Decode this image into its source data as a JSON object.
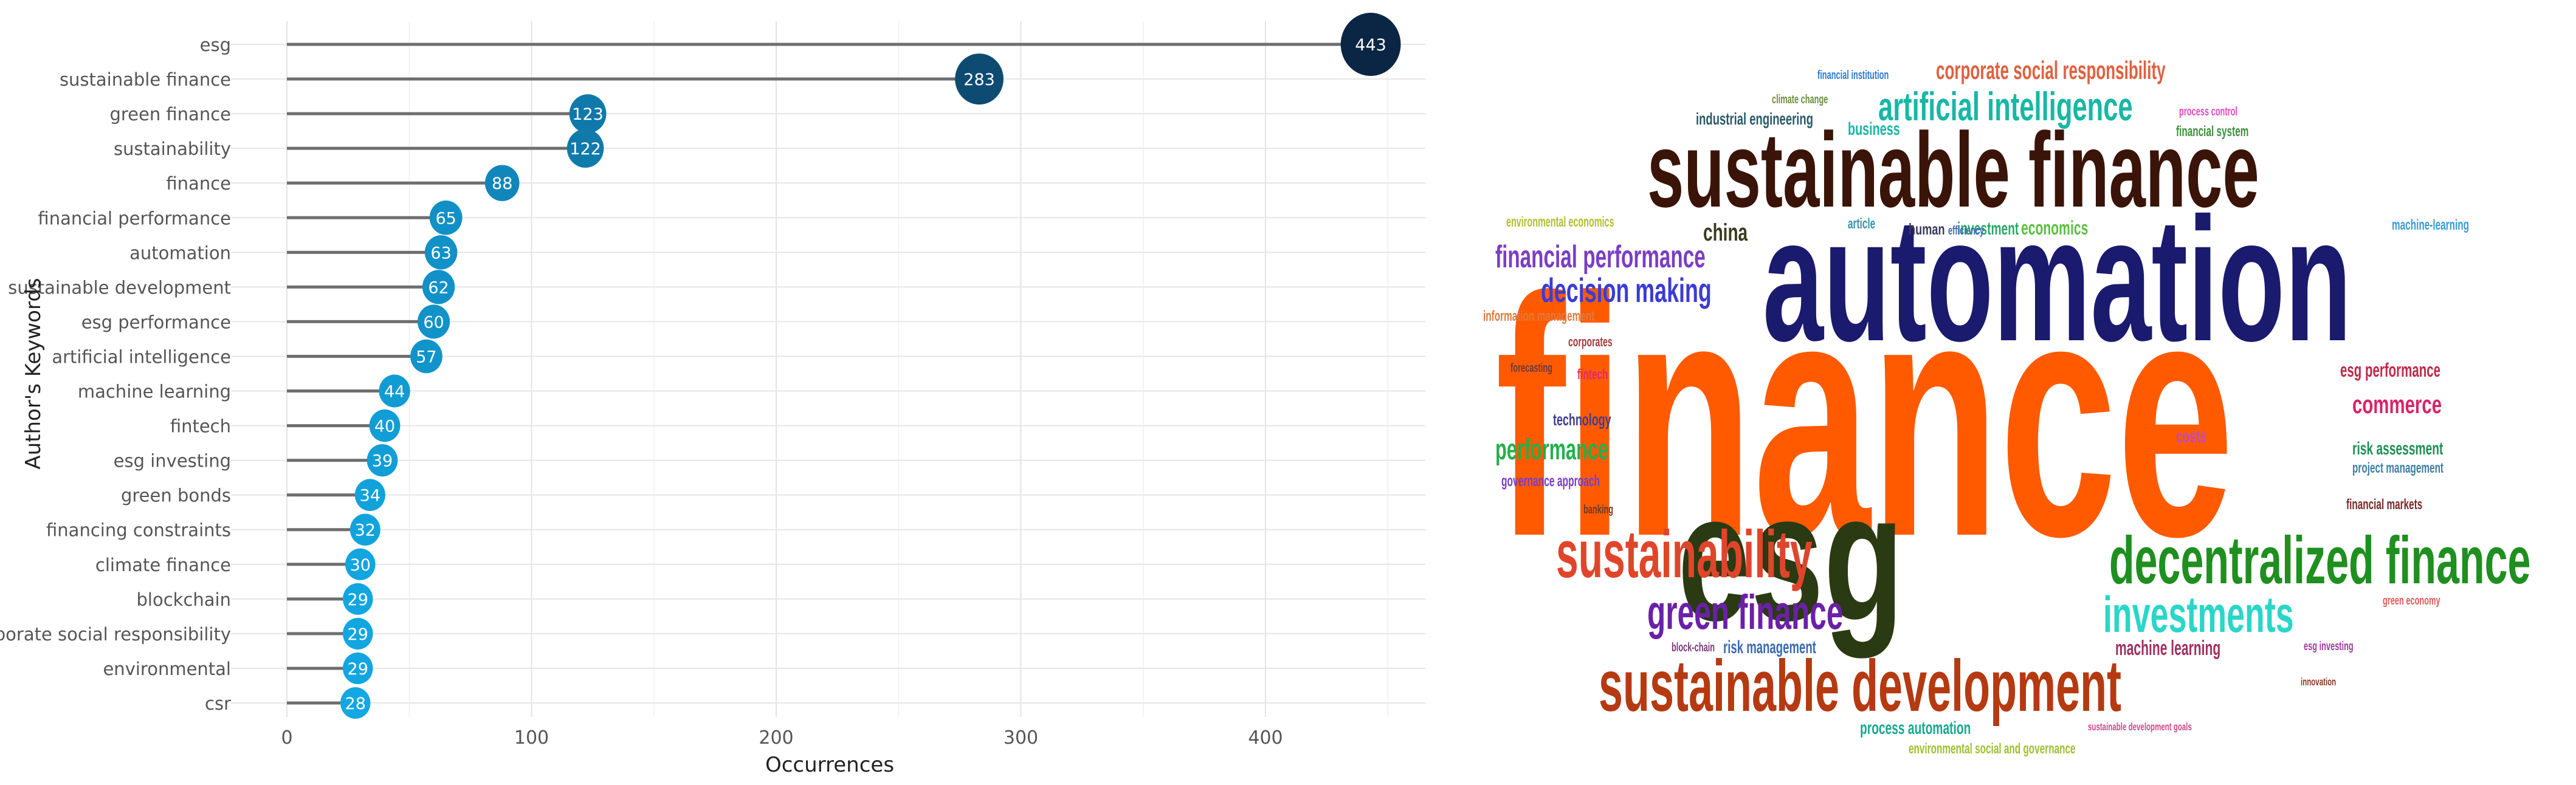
{
  "chart_data": [
    {
      "type": "lollipop",
      "orientation": "horizontal",
      "xlabel": "Occurrences",
      "ylabel": "Author's Keywords",
      "xlim": [
        0,
        460
      ],
      "xticks": [
        0,
        100,
        200,
        300,
        400
      ],
      "grid": true,
      "legend": "none",
      "categories": [
        "esg",
        "sustainable finance",
        "green finance",
        "sustainability",
        "finance",
        "financial performance",
        "automation",
        "sustainable development",
        "esg performance",
        "artificial intelligence",
        "machine learning",
        "fintech",
        "esg investing",
        "green bonds",
        "financing constraints",
        "climate finance",
        "blockchain",
        "corporate social responsibility",
        "environmental",
        "csr"
      ],
      "values": [
        443,
        283,
        123,
        122,
        88,
        65,
        63,
        62,
        60,
        57,
        44,
        40,
        39,
        34,
        32,
        30,
        29,
        29,
        29,
        28
      ],
      "colors": {
        "low": "#12a8e3",
        "high": "#0b2545",
        "stem": "#666666",
        "grid": "#e6e6e6"
      }
    },
    {
      "type": "wordcloud",
      "words": [
        {
          "text": "finance",
          "color": "#ff5a00"
        },
        {
          "text": "automation",
          "color": "#1a1a6e"
        },
        {
          "text": "sustainable finance",
          "color": "#3a1408"
        },
        {
          "text": "esg",
          "color": "#2a3a12"
        },
        {
          "text": "decentralized finance",
          "color": "#1f8f1f"
        },
        {
          "text": "sustainable development",
          "color": "#b53a12"
        },
        {
          "text": "sustainability",
          "color": "#e0452b"
        },
        {
          "text": "green finance",
          "color": "#6b20a8"
        },
        {
          "text": "investments",
          "color": "#2ad6c8"
        },
        {
          "text": "artificial intelligence",
          "color": "#18b7a6"
        },
        {
          "text": "corporate social responsibility",
          "color": "#e0603f"
        },
        {
          "text": "financial performance",
          "color": "#7a3ec4"
        },
        {
          "text": "decision making",
          "color": "#3b3bd6"
        },
        {
          "text": "performance",
          "color": "#23b04a"
        },
        {
          "text": "commerce",
          "color": "#d6246a"
        },
        {
          "text": "esg performance",
          "color": "#c02a4a"
        },
        {
          "text": "china",
          "color": "#3b3b1f"
        },
        {
          "text": "risk assessment",
          "color": "#1f8f55"
        },
        {
          "text": "project management",
          "color": "#3f7fa0"
        },
        {
          "text": "financial markets",
          "color": "#7a2a2a"
        },
        {
          "text": "costs",
          "color": "#c04ac0"
        },
        {
          "text": "technology",
          "color": "#3f3f8f"
        },
        {
          "text": "governance approach",
          "color": "#7a3ec4"
        },
        {
          "text": "risk management",
          "color": "#3a6ab0"
        },
        {
          "text": "machine learning",
          "color": "#a03060"
        },
        {
          "text": "process automation",
          "color": "#18a890"
        },
        {
          "text": "environmental social and governance",
          "color": "#9fc030"
        },
        {
          "text": "industrial engineering",
          "color": "#2a5a6a"
        },
        {
          "text": "financial system",
          "color": "#3f8f3f"
        },
        {
          "text": "information management",
          "color": "#e07a3a"
        },
        {
          "text": "environmental economics",
          "color": "#b0c030"
        },
        {
          "text": "economics",
          "color": "#5ac040"
        },
        {
          "text": "investment",
          "color": "#2aa86a"
        },
        {
          "text": "machine-learning",
          "color": "#3a9ad6"
        },
        {
          "text": "article",
          "color": "#3a8fb0"
        },
        {
          "text": "human",
          "color": "#3a3a5a"
        },
        {
          "text": "efficiency",
          "color": "#3a6ab0"
        },
        {
          "text": "financial institution",
          "color": "#2a7ad6"
        },
        {
          "text": "climate change",
          "color": "#6a8f3a"
        },
        {
          "text": "process control",
          "color": "#e04ac0"
        },
        {
          "text": "corporates",
          "color": "#a03a3a"
        },
        {
          "text": "forecasting",
          "color": "#6a3a3a"
        },
        {
          "text": "fintech",
          "color": "#e02a6a"
        },
        {
          "text": "banking",
          "color": "#6a3a2a"
        },
        {
          "text": "green economy",
          "color": "#e05a5a"
        },
        {
          "text": "esg investing",
          "color": "#a03aa0"
        },
        {
          "text": "innovation",
          "color": "#8a3a2a"
        },
        {
          "text": "block-chain",
          "color": "#7a3a7a"
        },
        {
          "text": "sustainable development goals",
          "color": "#d04a8a"
        },
        {
          "text": "business",
          "color": "#18b7a6"
        }
      ]
    }
  ]
}
